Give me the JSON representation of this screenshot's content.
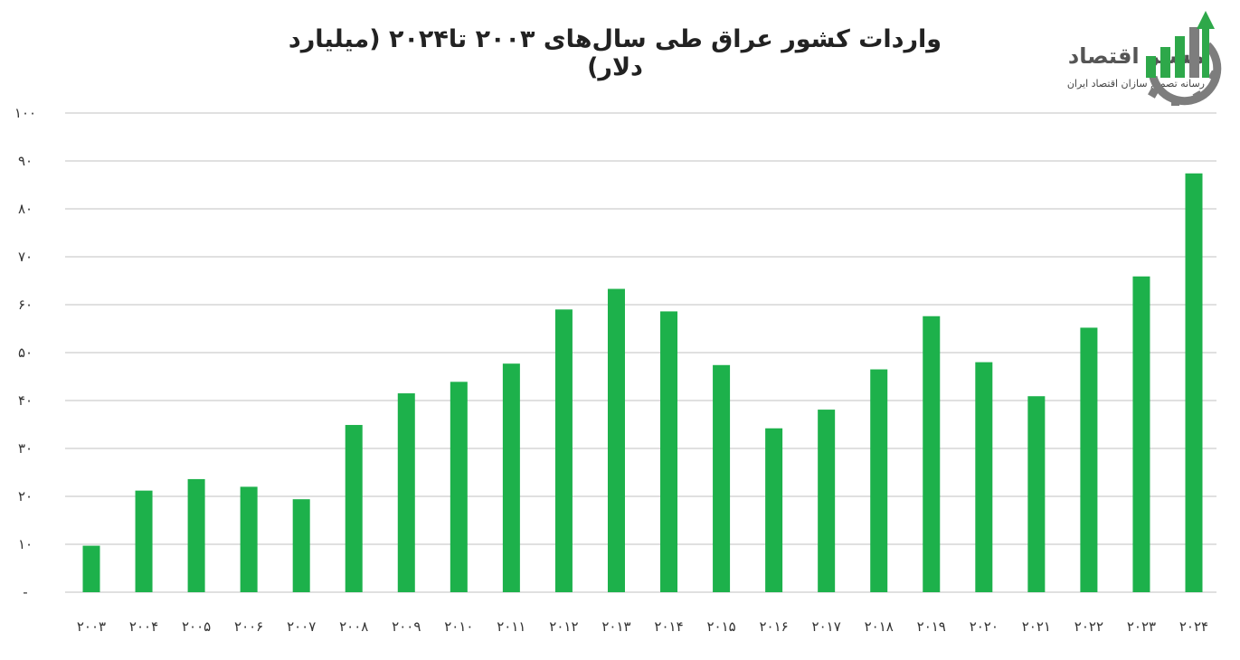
{
  "title": "واردات کشور عراق طی سال‌های ۲۰۰۳ تا۲۰۲۴ (میلیارد دلار)",
  "logo": {
    "name": "مسیر اقتصاد",
    "tagline": "رسانه تصمیم سازان اقتصاد ایران"
  },
  "colors": {
    "bar": "#1db14b",
    "grid": "#d6d6d6",
    "logo_green": "#2ea84a",
    "logo_gray": "#7d7d7d"
  },
  "chart_data": {
    "type": "bar",
    "categories": [
      "2003",
      "2004",
      "2005",
      "2006",
      "2007",
      "2008",
      "2009",
      "2010",
      "2011",
      "2012",
      "2013",
      "2014",
      "2015",
      "2016",
      "2017",
      "2018",
      "2019",
      "2020",
      "2021",
      "2022",
      "2023",
      "2024"
    ],
    "category_labels": [
      "۲۰۰۳",
      "۲۰۰۴",
      "۲۰۰۵",
      "۲۰۰۶",
      "۲۰۰۷",
      "۲۰۰۸",
      "۲۰۰۹",
      "۲۰۱۰",
      "۲۰۱۱",
      "۲۰۱۲",
      "۲۰۱۳",
      "۲۰۱۴",
      "۲۰۱۵",
      "۲۰۱۶",
      "۲۰۱۷",
      "۲۰۱۸",
      "۲۰۱۹",
      "۲۰۲۰",
      "۲۰۲۱",
      "۲۰۲۲",
      "۲۰۲۳",
      "۲۰۲۴"
    ],
    "values": [
      9.7,
      21.2,
      23.6,
      22.0,
      19.4,
      34.9,
      41.5,
      43.9,
      47.7,
      59.0,
      63.3,
      58.6,
      47.4,
      34.2,
      38.1,
      46.5,
      57.6,
      48.0,
      40.9,
      55.2,
      65.9,
      87.4
    ],
    "ylim": [
      0,
      100
    ],
    "yticks": [
      0,
      10,
      20,
      30,
      40,
      50,
      60,
      70,
      80,
      90,
      100
    ],
    "ytick_labels": [
      "-",
      "۱۰",
      "۲۰",
      "۳۰",
      "۴۰",
      "۵۰",
      "۶۰",
      "۷۰",
      "۸۰",
      "۹۰",
      "۱۰۰"
    ],
    "grid": true,
    "xlabel": "",
    "ylabel": ""
  }
}
